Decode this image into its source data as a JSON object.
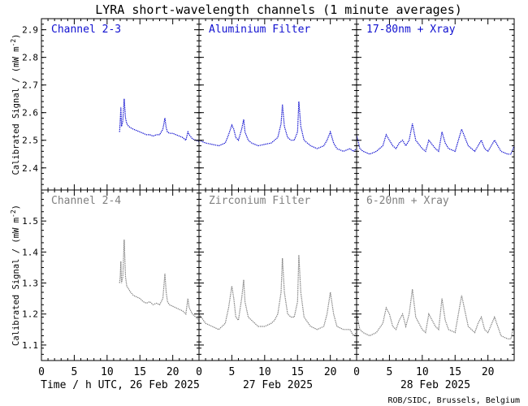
{
  "chart_data": {
    "type": "line",
    "title": "LYRA short-wavelength channels (1 minute averages)",
    "ylabel": "Calibrated Signal / (mW m",
    "ylabel_unit_suffix": ")",
    "ylabel_exponent": "-2",
    "credit": "ROB/SIDC, Brussels, Belgium",
    "x_ticks": [
      0,
      5,
      10,
      15,
      20
    ],
    "x_tick_labels": [
      "0",
      "5",
      "10",
      "15",
      "20"
    ],
    "day_labels": [
      "Time / h UTC, 26 Feb 2025",
      "27 Feb 2025",
      "28 Feb 2025"
    ],
    "xlim": [
      0,
      24
    ],
    "colors": {
      "top": "#1010d0",
      "bottom": "#808080"
    },
    "panels": [
      {
        "row": "top",
        "ylim": [
          2.32,
          2.94
        ],
        "y_ticks": [
          2.4,
          2.5,
          2.6,
          2.7,
          2.8,
          2.9
        ],
        "y_tick_labels": [
          "2.4",
          "2.5",
          "2.6",
          "2.7",
          "2.8",
          "2.9"
        ],
        "series": [
          {
            "name": "Channel 2-3",
            "x": [
              11.9,
              12.0,
              12.1,
              12.2,
              12.4,
              12.6,
              12.8,
              13.0,
              13.3,
              13.6,
              14.0,
              14.5,
              15.0,
              15.5,
              16.0,
              16.5,
              17.0,
              17.5,
              18.0,
              18.5,
              18.8,
              19.0,
              19.2,
              19.5,
              20.0,
              20.5,
              21.0,
              21.5,
              22.0,
              22.3,
              22.5,
              23.0,
              23.5,
              24.0
            ],
            "y": [
              2.53,
              2.57,
              2.62,
              2.55,
              2.57,
              2.65,
              2.58,
              2.56,
              2.55,
              2.545,
              2.54,
              2.535,
              2.53,
              2.525,
              2.52,
              2.52,
              2.515,
              2.52,
              2.52,
              2.54,
              2.58,
              2.545,
              2.53,
              2.525,
              2.525,
              2.52,
              2.515,
              2.51,
              2.5,
              2.53,
              2.52,
              2.505,
              2.5,
              2.495
            ]
          },
          {
            "name": "Aluminium Filter",
            "x": [
              0,
              1,
              2,
              3,
              4,
              4.5,
              5,
              5.3,
              5.6,
              6,
              6.5,
              6.8,
              7,
              7.5,
              8,
              9,
              10,
              11,
              11.5,
              12,
              12.5,
              12.7,
              13,
              13.5,
              14,
              14.5,
              15,
              15.2,
              15.5,
              16,
              17,
              18,
              19,
              19.5,
              20,
              20.5,
              21,
              22,
              23,
              23.5,
              24
            ],
            "y": [
              2.5,
              2.49,
              2.485,
              2.48,
              2.49,
              2.52,
              2.555,
              2.54,
              2.51,
              2.5,
              2.54,
              2.575,
              2.53,
              2.5,
              2.49,
              2.48,
              2.485,
              2.49,
              2.5,
              2.51,
              2.56,
              2.63,
              2.55,
              2.51,
              2.5,
              2.5,
              2.53,
              2.64,
              2.55,
              2.5,
              2.48,
              2.47,
              2.48,
              2.5,
              2.53,
              2.49,
              2.47,
              2.46,
              2.47,
              2.46,
              2.47
            ]
          },
          {
            "name": "17-80nm + Xray",
            "x": [
              0,
              0.5,
              1,
              2,
              3,
              4,
              4.5,
              5,
              5.5,
              6,
              6.5,
              7,
              7.5,
              8,
              8.5,
              9,
              10,
              10.5,
              11,
              12,
              12.5,
              13,
              13.5,
              14,
              15,
              15.5,
              16,
              17,
              18,
              18.5,
              19,
              19.5,
              20,
              21,
              22,
              23,
              23.5,
              24
            ],
            "y": [
              2.52,
              2.47,
              2.46,
              2.45,
              2.46,
              2.48,
              2.52,
              2.5,
              2.48,
              2.47,
              2.49,
              2.5,
              2.48,
              2.5,
              2.56,
              2.5,
              2.47,
              2.46,
              2.5,
              2.47,
              2.46,
              2.53,
              2.49,
              2.47,
              2.46,
              2.5,
              2.54,
              2.48,
              2.46,
              2.48,
              2.5,
              2.47,
              2.46,
              2.5,
              2.46,
              2.45,
              2.45,
              2.48
            ]
          }
        ]
      },
      {
        "row": "bottom",
        "ylim": [
          1.05,
          1.6
        ],
        "y_ticks": [
          1.1,
          1.2,
          1.3,
          1.4,
          1.5
        ],
        "y_tick_labels": [
          "1.1",
          "1.2",
          "1.3",
          "1.4",
          "1.5"
        ],
        "series": [
          {
            "name": "Channel 2-4",
            "x": [
              11.9,
              12.0,
              12.1,
              12.2,
              12.4,
              12.6,
              12.8,
              13.0,
              13.3,
              13.6,
              14.0,
              14.5,
              15.0,
              15.5,
              16.0,
              16.5,
              17.0,
              17.5,
              18.0,
              18.5,
              18.8,
              19.0,
              19.2,
              19.5,
              20.0,
              20.5,
              21.0,
              21.5,
              22.0,
              22.3,
              22.5,
              23.0,
              23.5,
              24.0
            ],
            "y": [
              1.3,
              1.32,
              1.37,
              1.3,
              1.32,
              1.44,
              1.32,
              1.29,
              1.28,
              1.27,
              1.26,
              1.255,
              1.25,
              1.24,
              1.235,
              1.24,
              1.23,
              1.235,
              1.23,
              1.25,
              1.33,
              1.27,
              1.24,
              1.23,
              1.225,
              1.22,
              1.215,
              1.21,
              1.2,
              1.25,
              1.22,
              1.2,
              1.19,
              1.18
            ]
          },
          {
            "name": "Zirconium Filter",
            "x": [
              0,
              1,
              2,
              3,
              4,
              4.5,
              5,
              5.3,
              5.6,
              6,
              6.5,
              6.8,
              7,
              7.5,
              8,
              9,
              10,
              11,
              11.5,
              12,
              12.5,
              12.7,
              13,
              13.5,
              14,
              14.5,
              15,
              15.2,
              15.5,
              16,
              17,
              18,
              19,
              19.5,
              20,
              20.5,
              21,
              22,
              23,
              23.5,
              24
            ],
            "y": [
              1.2,
              1.17,
              1.16,
              1.15,
              1.17,
              1.22,
              1.29,
              1.25,
              1.19,
              1.18,
              1.25,
              1.31,
              1.24,
              1.19,
              1.18,
              1.16,
              1.16,
              1.17,
              1.18,
              1.2,
              1.27,
              1.38,
              1.27,
              1.2,
              1.19,
              1.19,
              1.24,
              1.39,
              1.27,
              1.19,
              1.16,
              1.15,
              1.16,
              1.2,
              1.27,
              1.2,
              1.16,
              1.15,
              1.15,
              1.13,
              1.14
            ]
          },
          {
            "name": "6-20nm + Xray",
            "x": [
              0,
              0.5,
              1,
              2,
              3,
              4,
              4.5,
              5,
              5.5,
              6,
              6.5,
              7,
              7.5,
              8,
              8.5,
              9,
              10,
              10.5,
              11,
              12,
              12.5,
              13,
              13.5,
              14,
              15,
              15.5,
              16,
              17,
              18,
              18.5,
              19,
              19.5,
              20,
              21,
              22,
              23,
              23.5,
              24
            ],
            "y": [
              1.2,
              1.15,
              1.14,
              1.13,
              1.14,
              1.17,
              1.22,
              1.2,
              1.16,
              1.15,
              1.18,
              1.2,
              1.16,
              1.2,
              1.28,
              1.19,
              1.15,
              1.14,
              1.2,
              1.16,
              1.15,
              1.25,
              1.18,
              1.15,
              1.14,
              1.2,
              1.26,
              1.16,
              1.14,
              1.17,
              1.19,
              1.15,
              1.14,
              1.19,
              1.13,
              1.12,
              1.12,
              1.17
            ]
          }
        ]
      }
    ]
  }
}
